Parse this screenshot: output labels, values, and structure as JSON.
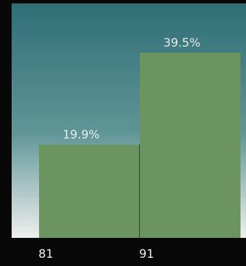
{
  "chart_data": {
    "type": "bar",
    "categories": [
      "81",
      "91"
    ],
    "values": [
      19.9,
      39.5
    ],
    "data_labels": [
      "19.9%",
      "39.5%"
    ],
    "ylim": [
      0,
      50
    ],
    "grid": false,
    "legend": "none",
    "xlabel": "",
    "ylabel": "",
    "title": ""
  },
  "colors": {
    "bar": "#6c9460",
    "background_top": "#2f6e76",
    "background_mid": "#5f9596",
    "background_bottom": "#eef0ee",
    "frame": "#080809",
    "label_light": "#e7ecec",
    "tick_label": "#f2f2f2"
  }
}
